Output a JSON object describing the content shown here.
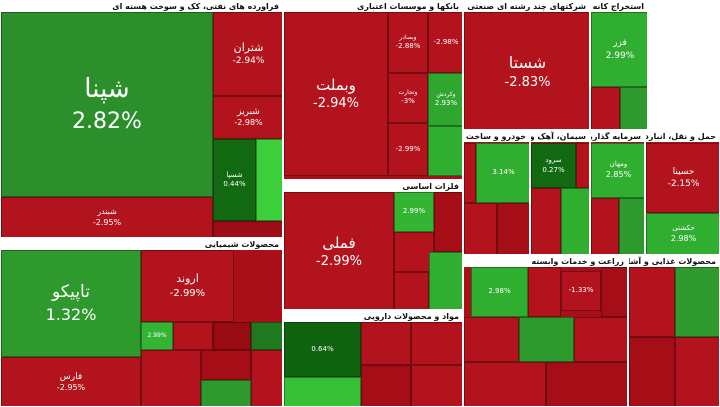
{
  "sectors": [
    {
      "title": "فراورده های نفتی، کک و سوخت هسته ای",
      "tiles": [
        {
          "name": "شپنا",
          "change": "2.82%",
          "color": "#2b902b"
        },
        {
          "name": "شتران",
          "change": "-2.94%",
          "color": "#b3131c"
        },
        {
          "name": "شبریز",
          "change": "-2.98%",
          "color": "#b3131c"
        },
        {
          "name": "شسپا",
          "change": "0.44%",
          "color": "#116a11"
        },
        {
          "name": "شبندر",
          "change": "-2.95%",
          "color": "#b3131c"
        }
      ]
    },
    {
      "title": "محصولات شیمیایی",
      "tiles": [
        {
          "name": "تاپیکو",
          "change": "1.32%",
          "color": "#2e9a2e"
        },
        {
          "name": "فارس",
          "change": "-2.95%",
          "color": "#b3131c"
        },
        {
          "name": "اروند",
          "change": "-2.99%",
          "color": "#b3131c"
        },
        {
          "change": "2.99%",
          "color": "#33b533"
        }
      ]
    },
    {
      "title": "بانکها و موسسات اعتباری",
      "tiles": [
        {
          "name": "وبملت",
          "change": "-2.94%",
          "color": "#b3131c"
        },
        {
          "name": "وبصادر",
          "change": "-2.88%",
          "color": "#b3131c"
        },
        {
          "change": "-2.98%",
          "color": "#b3131c"
        },
        {
          "name": "وتجارت",
          "change": "-3%",
          "color": "#b3131c"
        },
        {
          "name": "وکردش",
          "change": "2.93%",
          "color": "#2fa72f"
        },
        {
          "change": "-2.99%",
          "color": "#b3131c"
        }
      ]
    },
    {
      "title": "فلزات اساسی",
      "tiles": [
        {
          "name": "فملی",
          "change": "-2.99%",
          "color": "#b3131c"
        },
        {
          "change": "2.99%",
          "color": "#33b533"
        }
      ]
    },
    {
      "title": "مواد و محصولات دارویی",
      "tiles": [
        {
          "change": "0.64%",
          "color": "#0f650f"
        }
      ]
    },
    {
      "title": "شرکتهای چند رشته ای صنعتی",
      "tiles": [
        {
          "name": "شستا",
          "change": "-2.83%",
          "color": "#b3131c"
        }
      ]
    },
    {
      "title": "استخراج کانه های فلزی",
      "tiles": [
        {
          "name": "فزر",
          "change": "2.99%",
          "color": "#2fae2f"
        }
      ]
    },
    {
      "title": "خودرو و ساخت قطعات",
      "tiles": [
        {
          "change": "3.14%",
          "color": "#2fae2f"
        }
      ]
    },
    {
      "title": "سیمان، آهک و گچ",
      "tiles": [
        {
          "name": "سرود",
          "change": "0.27%",
          "color": "#116a11"
        }
      ]
    },
    {
      "title": "سرمایه گذاریها",
      "tiles": [
        {
          "name": "ومهان",
          "change": "2.85%",
          "color": "#2fae2f"
        }
      ]
    },
    {
      "title": "حمل و نقل، انبارداری و ارتباطات",
      "tiles": [
        {
          "name": "حسینا",
          "change": "-2.15%",
          "color": "#b3131c"
        },
        {
          "name": "حکشتی",
          "change": "2.98%",
          "color": "#2fae2f"
        }
      ]
    },
    {
      "title": "زراعت و خدمات وابسته",
      "tiles": [
        {
          "change": "2.98%",
          "color": "#2fae2f"
        },
        {
          "change": "-1.33%",
          "color": "#b3131c"
        }
      ]
    },
    {
      "title": "محصولات غذایی و آشامیدنی به جز قند و شکر",
      "tiles": []
    }
  ]
}
